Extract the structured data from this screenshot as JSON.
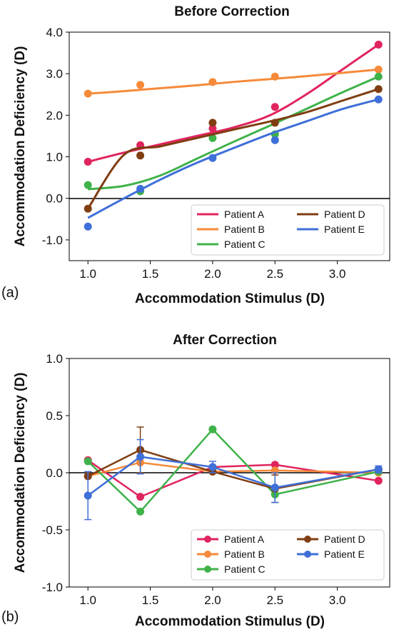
{
  "colors": {
    "Patient A": "#e0245e",
    "Patient B": "#f58a3a",
    "Patient C": "#3fb24a",
    "Patient D": "#7f3d12",
    "Patient E": "#3f6fd8"
  },
  "chart_data": [
    {
      "type": "line",
      "panel": "(a)",
      "title": "Before Correction",
      "xlabel": "Accommodation Stimulus (D)",
      "ylabel": "Accommodation Deficiency (D)",
      "xlim": [
        0.85,
        3.42
      ],
      "ylim": [
        -1.5,
        4.0
      ],
      "xticks": [
        1.0,
        1.5,
        2.0,
        2.5,
        3.0
      ],
      "xtick_labels": [
        "1.0",
        "1.5",
        "2.0",
        "2.5",
        "3.0"
      ],
      "yticks": [
        -1.0,
        0.0,
        1.0,
        2.0,
        3.0,
        4.0
      ],
      "ytick_labels": [
        "-1.0",
        "0.0",
        "1.0",
        "2.0",
        "3.0",
        "4.0"
      ],
      "zero_line": true,
      "legend": "lower-right",
      "x": [
        1.0,
        1.42,
        2.0,
        2.5,
        3.33
      ],
      "series": [
        {
          "name": "Patient A",
          "values": [
            0.88,
            1.28,
            1.68,
            2.2,
            3.7
          ],
          "fit": [
            0.88,
            1.1,
            1.3,
            1.5,
            1.7,
            2.0,
            2.5,
            3.1,
            3.7
          ]
        },
        {
          "name": "Patient B",
          "values": [
            2.52,
            2.73,
            2.8,
            2.93,
            3.1
          ],
          "fit": [
            2.52,
            2.58,
            2.65,
            2.72,
            2.8,
            2.87,
            2.94,
            3.02,
            3.1
          ]
        },
        {
          "name": "Patient C",
          "values": [
            0.32,
            0.17,
            1.45,
            1.54,
            2.93
          ],
          "fit": [
            0.22,
            0.3,
            0.55,
            0.95,
            1.35,
            1.75,
            2.15,
            2.55,
            2.93
          ]
        },
        {
          "name": "Patient D",
          "values": [
            -0.25,
            1.03,
            1.82,
            1.82,
            2.63
          ],
          "fit": [
            -0.25,
            1.05,
            1.25,
            1.45,
            1.65,
            1.85,
            2.07,
            2.35,
            2.63
          ]
        },
        {
          "name": "Patient E",
          "values": [
            -0.68,
            0.23,
            0.97,
            1.4,
            2.38
          ],
          "fit": [
            -0.47,
            0.0,
            0.45,
            0.85,
            1.2,
            1.55,
            1.85,
            2.15,
            2.38
          ]
        }
      ],
      "fit_x": [
        1.0,
        1.29,
        1.58,
        1.87,
        2.16,
        2.46,
        2.75,
        3.04,
        3.33
      ]
    },
    {
      "type": "line",
      "panel": "(b)",
      "title": "After Correction",
      "xlabel": "Accommodation Stimulus (D)",
      "ylabel": "Accommodation Deficiency (D)",
      "xlim": [
        0.85,
        3.42
      ],
      "ylim": [
        -1.0,
        1.0
      ],
      "xticks": [
        1.0,
        1.5,
        2.0,
        2.5,
        3.0
      ],
      "xtick_labels": [
        "1.0",
        "1.5",
        "2.0",
        "2.5",
        "3.0"
      ],
      "yticks": [
        -1.0,
        -0.5,
        0.0,
        0.5,
        1.0
      ],
      "ytick_labels": [
        "-1.0",
        "-0.5",
        "0.0",
        "0.5",
        "1.0"
      ],
      "zero_line": true,
      "legend": "lower-right",
      "x": [
        1.0,
        1.42,
        2.0,
        2.5,
        3.33
      ],
      "series": [
        {
          "name": "Patient A",
          "values": [
            0.11,
            -0.21,
            0.05,
            0.07,
            -0.07
          ],
          "err": [
            0,
            0,
            0,
            0,
            0
          ]
        },
        {
          "name": "Patient B",
          "values": [
            -0.03,
            0.09,
            0.01,
            0.02,
            0.0
          ],
          "err": [
            0,
            0,
            0,
            0,
            0
          ]
        },
        {
          "name": "Patient C",
          "values": [
            0.1,
            -0.34,
            0.38,
            -0.19,
            0.01
          ],
          "err": [
            0,
            0,
            0,
            0,
            0
          ]
        },
        {
          "name": "Patient D",
          "values": [
            -0.03,
            0.2,
            0.01,
            -0.14,
            0.03
          ],
          "err": [
            0,
            0.2,
            0,
            0.12,
            0
          ]
        },
        {
          "name": "Patient E",
          "values": [
            -0.2,
            0.14,
            0.05,
            -0.13,
            0.03
          ],
          "err": [
            0.21,
            0.15,
            0.05,
            0.13,
            0.03
          ]
        }
      ]
    }
  ]
}
